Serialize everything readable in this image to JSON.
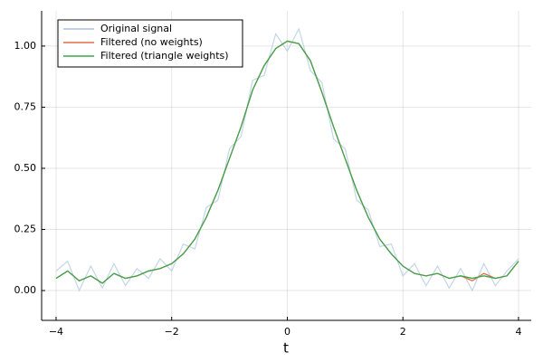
{
  "chart_data": {
    "type": "line",
    "xlabel": "t",
    "x": [
      -4,
      -3.8,
      -3.6,
      -3.4,
      -3.2,
      -3,
      -2.8,
      -2.6,
      -2.4,
      -2.2,
      -2,
      -1.8,
      -1.6,
      -1.4,
      -1.2,
      -1,
      -0.8,
      -0.6,
      -0.4,
      -0.2,
      0,
      0.2,
      0.4,
      0.6,
      0.8,
      1,
      1.2,
      1.4,
      1.6,
      1.8,
      2,
      2.2,
      2.4,
      2.6,
      2.8,
      3,
      3.2,
      3.4,
      3.6,
      3.8,
      4
    ],
    "series": [
      {
        "name": "Original signal",
        "color": "#a9c4de",
        "values": [
          0.08,
          0.12,
          0.0,
          0.1,
          0.01,
          0.11,
          0.02,
          0.09,
          0.05,
          0.13,
          0.08,
          0.19,
          0.17,
          0.34,
          0.37,
          0.58,
          0.63,
          0.86,
          0.88,
          1.05,
          0.98,
          1.07,
          0.9,
          0.85,
          0.62,
          0.58,
          0.37,
          0.33,
          0.18,
          0.19,
          0.06,
          0.11,
          0.02,
          0.1,
          0.01,
          0.09,
          0.0,
          0.11,
          0.02,
          0.08,
          0.13
        ]
      },
      {
        "name": "Filtered (no weights)",
        "color": "#e26f46",
        "values": [
          0.05,
          0.08,
          0.04,
          0.06,
          0.03,
          0.07,
          0.05,
          0.06,
          0.08,
          0.09,
          0.11,
          0.15,
          0.21,
          0.3,
          0.41,
          0.54,
          0.67,
          0.82,
          0.92,
          0.99,
          1.02,
          1.01,
          0.94,
          0.81,
          0.67,
          0.54,
          0.41,
          0.3,
          0.21,
          0.15,
          0.1,
          0.07,
          0.06,
          0.07,
          0.05,
          0.06,
          0.04,
          0.07,
          0.05,
          0.06,
          0.12
        ]
      },
      {
        "name": "Filtered (triangle weights)",
        "color": "#3da44d",
        "values": [
          0.05,
          0.08,
          0.04,
          0.06,
          0.03,
          0.07,
          0.05,
          0.06,
          0.08,
          0.09,
          0.11,
          0.15,
          0.21,
          0.3,
          0.41,
          0.54,
          0.67,
          0.82,
          0.92,
          0.99,
          1.02,
          1.01,
          0.94,
          0.81,
          0.67,
          0.54,
          0.41,
          0.3,
          0.21,
          0.15,
          0.1,
          0.07,
          0.06,
          0.07,
          0.05,
          0.06,
          0.05,
          0.06,
          0.05,
          0.06,
          0.12
        ]
      }
    ],
    "xlim": [
      -4.25,
      4.22
    ],
    "ylim": [
      -0.122,
      1.144
    ],
    "xticks": [
      {
        "value": -4,
        "label": "−4"
      },
      {
        "value": -2,
        "label": "−2"
      },
      0,
      2,
      4
    ],
    "yticks": [
      {
        "value": 0,
        "label": "0.00"
      },
      {
        "value": 0.25,
        "label": "0.25"
      },
      {
        "value": 0.5,
        "label": "0.50"
      },
      {
        "value": 0.75,
        "label": "0.75"
      },
      {
        "value": 1,
        "label": "1.00"
      }
    ],
    "grid": true,
    "legend": "top-left"
  }
}
